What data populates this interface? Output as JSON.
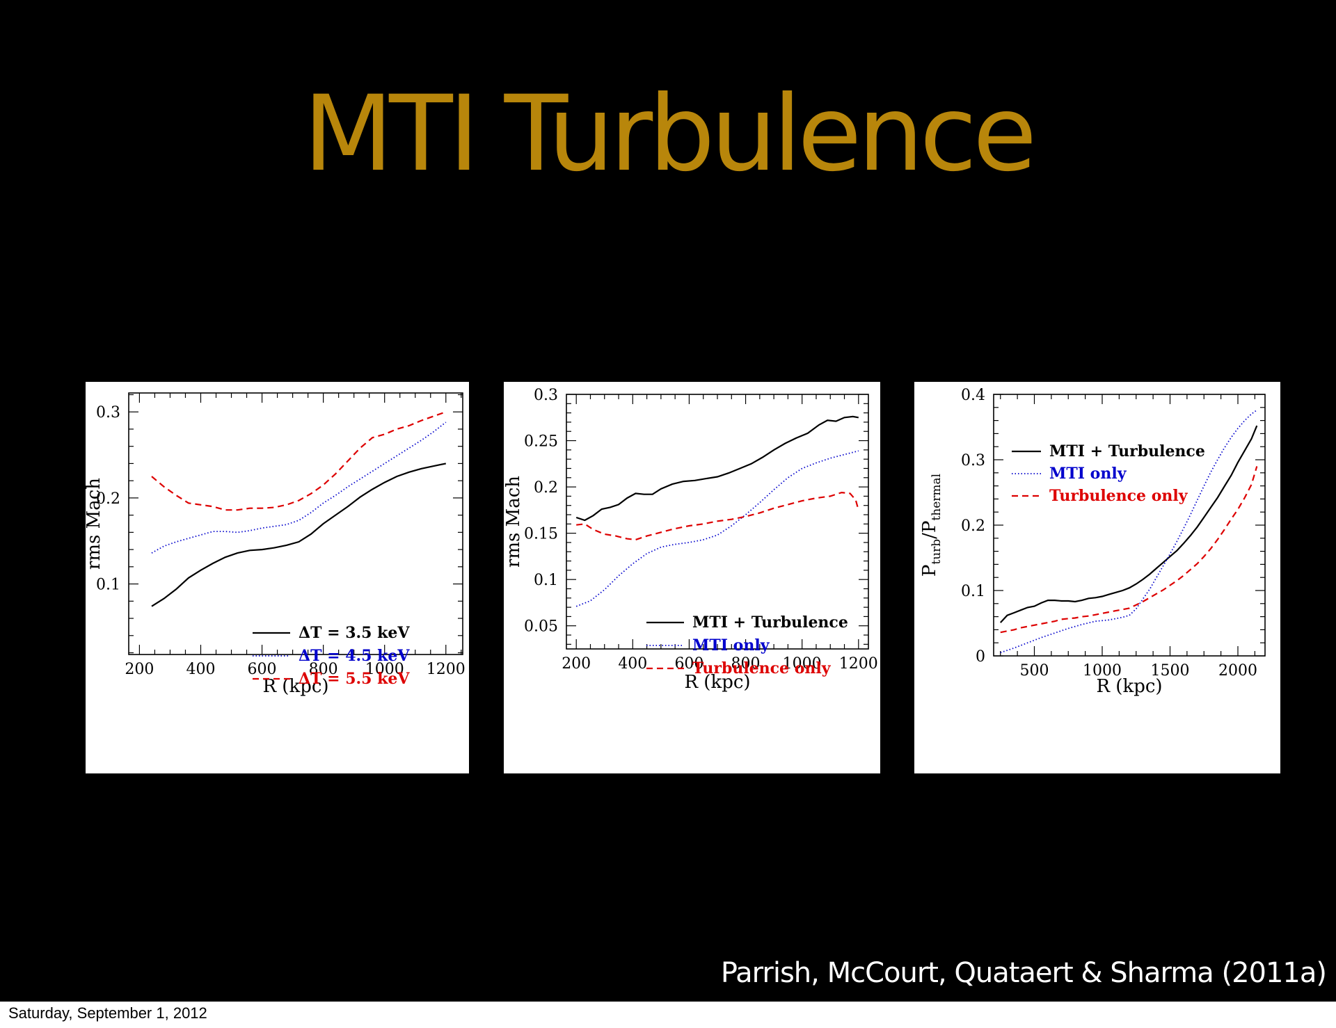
{
  "slide": {
    "title": "MTI Turbulence",
    "citation": "Parrish, McCourt, Quataert & Sharma (2011a)",
    "background": "#000000",
    "title_color": "#b8860b"
  },
  "footer": {
    "date": "Saturday, September 1, 2012"
  },
  "chart_data": [
    {
      "type": "line",
      "xlabel": "R (kpc)",
      "ylabel": "rms Mach",
      "xlim": [
        165,
        1255
      ],
      "ylim": [
        0.018,
        0.322
      ],
      "xticks": [
        200,
        400,
        600,
        800,
        1000,
        1200
      ],
      "xtick_labels": [
        "200",
        "400",
        "600",
        "800",
        "1000",
        "1200"
      ],
      "yticks": [
        0.1,
        0.2,
        0.3
      ],
      "ytick_labels": [
        "0.1",
        "0.2",
        "0.3"
      ],
      "legend_position": "bottom-right",
      "series": [
        {
          "name": "ΔT = 3.5 keV",
          "color": "#000000",
          "dash": "solid",
          "x": [
            240,
            280,
            320,
            360,
            400,
            440,
            480,
            520,
            560,
            600,
            640,
            680,
            720,
            760,
            800,
            840,
            880,
            920,
            960,
            1000,
            1040,
            1080,
            1120,
            1160,
            1200
          ],
          "y": [
            0.074,
            0.083,
            0.094,
            0.107,
            0.116,
            0.124,
            0.131,
            0.136,
            0.139,
            0.14,
            0.142,
            0.145,
            0.149,
            0.158,
            0.17,
            0.18,
            0.19,
            0.201,
            0.21,
            0.218,
            0.225,
            0.23,
            0.234,
            0.237,
            0.24
          ]
        },
        {
          "name": "ΔT = 4.5 keV",
          "color": "#0000cc",
          "dash": "dotted",
          "x": [
            240,
            280,
            320,
            360,
            400,
            440,
            480,
            520,
            560,
            600,
            640,
            680,
            720,
            760,
            800,
            840,
            880,
            920,
            960,
            1000,
            1040,
            1080,
            1120,
            1160,
            1200
          ],
          "y": [
            0.136,
            0.144,
            0.149,
            0.153,
            0.157,
            0.161,
            0.161,
            0.16,
            0.162,
            0.165,
            0.167,
            0.169,
            0.174,
            0.183,
            0.194,
            0.203,
            0.213,
            0.222,
            0.231,
            0.24,
            0.249,
            0.258,
            0.267,
            0.277,
            0.288
          ]
        },
        {
          "name": "ΔT = 5.5 keV",
          "color": "#dd0000",
          "dash": "dashed",
          "x": [
            240,
            280,
            320,
            360,
            400,
            440,
            480,
            520,
            560,
            600,
            640,
            680,
            720,
            760,
            800,
            840,
            880,
            920,
            960,
            1000,
            1040,
            1080,
            1120,
            1160,
            1200
          ],
          "y": [
            0.225,
            0.213,
            0.203,
            0.194,
            0.192,
            0.19,
            0.186,
            0.186,
            0.188,
            0.188,
            0.189,
            0.192,
            0.197,
            0.205,
            0.215,
            0.228,
            0.243,
            0.258,
            0.27,
            0.274,
            0.28,
            0.284,
            0.29,
            0.295,
            0.3
          ]
        }
      ]
    },
    {
      "type": "line",
      "xlabel": "R (kpc)",
      "ylabel": "rms Mach",
      "xlim": [
        165,
        1235
      ],
      "ylim": [
        0.025,
        0.3
      ],
      "xticks": [
        200,
        400,
        600,
        800,
        1000,
        1200
      ],
      "xtick_labels": [
        "200",
        "400",
        "600",
        "800",
        "1000",
        "1200"
      ],
      "yticks": [
        0.05,
        0.1,
        0.15,
        0.2,
        0.25,
        0.3
      ],
      "ytick_labels": [
        "0.05",
        "0.1",
        "0.15",
        "0.2",
        "0.25",
        "0.3"
      ],
      "legend_position": "bottom-right",
      "series": [
        {
          "name": "MTI + Turbulence",
          "color": "#000000",
          "dash": "solid",
          "x": [
            200,
            230,
            260,
            290,
            320,
            350,
            380,
            410,
            440,
            470,
            500,
            540,
            580,
            620,
            660,
            700,
            740,
            780,
            820,
            860,
            900,
            940,
            980,
            1020,
            1060,
            1090,
            1120,
            1150,
            1180,
            1200
          ],
          "y": [
            0.167,
            0.164,
            0.169,
            0.176,
            0.178,
            0.181,
            0.188,
            0.193,
            0.192,
            0.192,
            0.198,
            0.203,
            0.206,
            0.207,
            0.209,
            0.211,
            0.215,
            0.22,
            0.225,
            0.232,
            0.24,
            0.247,
            0.253,
            0.258,
            0.267,
            0.272,
            0.271,
            0.275,
            0.276,
            0.275
          ]
        },
        {
          "name": "MTI only",
          "color": "#0000cc",
          "dash": "dotted",
          "x": [
            200,
            250,
            300,
            350,
            400,
            450,
            500,
            550,
            600,
            650,
            700,
            750,
            800,
            850,
            900,
            950,
            1000,
            1050,
            1100,
            1150,
            1200
          ],
          "y": [
            0.071,
            0.077,
            0.089,
            0.104,
            0.117,
            0.128,
            0.135,
            0.138,
            0.14,
            0.143,
            0.148,
            0.158,
            0.17,
            0.183,
            0.197,
            0.21,
            0.22,
            0.226,
            0.231,
            0.235,
            0.239
          ]
        },
        {
          "name": "Turbulence only",
          "color": "#dd0000",
          "dash": "dashed",
          "x": [
            200,
            230,
            260,
            300,
            340,
            380,
            410,
            450,
            500,
            550,
            600,
            650,
            700,
            750,
            800,
            850,
            900,
            950,
            1000,
            1050,
            1100,
            1140,
            1170,
            1190,
            1200
          ],
          "y": [
            0.159,
            0.16,
            0.154,
            0.149,
            0.147,
            0.144,
            0.143,
            0.147,
            0.151,
            0.155,
            0.158,
            0.16,
            0.163,
            0.165,
            0.168,
            0.172,
            0.177,
            0.181,
            0.185,
            0.188,
            0.19,
            0.194,
            0.193,
            0.186,
            0.175
          ]
        }
      ]
    },
    {
      "type": "line",
      "xlabel": "R (kpc)",
      "ylabel": "P_turb/P_thermal",
      "xlim": [
        200,
        2200
      ],
      "ylim": [
        0,
        0.4
      ],
      "xticks": [
        500,
        1000,
        1500,
        2000
      ],
      "xtick_labels": [
        "500",
        "1000",
        "1500",
        "2000"
      ],
      "yticks": [
        0,
        0.1,
        0.2,
        0.3,
        0.4
      ],
      "ytick_labels": [
        "0",
        "0.1",
        "0.2",
        "0.3",
        "0.4"
      ],
      "legend_position": "top-left",
      "series": [
        {
          "name": "MTI + Turbulence",
          "color": "#000000",
          "dash": "solid",
          "x": [
            250,
            300,
            350,
            400,
            450,
            500,
            550,
            600,
            650,
            700,
            750,
            800,
            850,
            900,
            950,
            1000,
            1050,
            1100,
            1150,
            1200,
            1250,
            1300,
            1350,
            1400,
            1450,
            1500,
            1550,
            1600,
            1650,
            1700,
            1750,
            1800,
            1850,
            1900,
            1950,
            2000,
            2050,
            2100,
            2140
          ],
          "y": [
            0.051,
            0.062,
            0.066,
            0.07,
            0.074,
            0.076,
            0.081,
            0.085,
            0.085,
            0.084,
            0.084,
            0.083,
            0.085,
            0.088,
            0.089,
            0.091,
            0.094,
            0.097,
            0.1,
            0.104,
            0.11,
            0.117,
            0.125,
            0.134,
            0.143,
            0.152,
            0.161,
            0.172,
            0.184,
            0.197,
            0.212,
            0.227,
            0.242,
            0.259,
            0.276,
            0.296,
            0.314,
            0.332,
            0.352
          ]
        },
        {
          "name": "MTI only",
          "color": "#0000cc",
          "dash": "dotted",
          "x": [
            250,
            350,
            450,
            550,
            650,
            750,
            850,
            950,
            1050,
            1150,
            1200,
            1250,
            1300,
            1350,
            1400,
            1450,
            1500,
            1550,
            1600,
            1650,
            1700,
            1750,
            1800,
            1850,
            1900,
            1950,
            2000,
            2050,
            2100,
            2140
          ],
          "y": [
            0.005,
            0.012,
            0.02,
            0.028,
            0.035,
            0.042,
            0.048,
            0.053,
            0.055,
            0.059,
            0.062,
            0.072,
            0.087,
            0.102,
            0.12,
            0.138,
            0.156,
            0.175,
            0.195,
            0.216,
            0.238,
            0.26,
            0.281,
            0.3,
            0.318,
            0.334,
            0.348,
            0.36,
            0.37,
            0.376
          ]
        },
        {
          "name": "Turbulence only",
          "color": "#dd0000",
          "dash": "dashed",
          "x": [
            250,
            300,
            350,
            400,
            450,
            500,
            550,
            600,
            650,
            700,
            750,
            800,
            850,
            900,
            950,
            1000,
            1050,
            1100,
            1150,
            1200,
            1250,
            1300,
            1350,
            1400,
            1450,
            1500,
            1550,
            1600,
            1650,
            1700,
            1750,
            1800,
            1850,
            1900,
            1950,
            2000,
            2050,
            2100,
            2140
          ],
          "y": [
            0.036,
            0.038,
            0.04,
            0.043,
            0.045,
            0.047,
            0.049,
            0.051,
            0.053,
            0.056,
            0.057,
            0.058,
            0.06,
            0.061,
            0.063,
            0.065,
            0.067,
            0.069,
            0.071,
            0.073,
            0.078,
            0.083,
            0.089,
            0.095,
            0.101,
            0.108,
            0.115,
            0.123,
            0.132,
            0.141,
            0.152,
            0.164,
            0.178,
            0.193,
            0.209,
            0.224,
            0.242,
            0.262,
            0.29
          ]
        }
      ]
    }
  ]
}
